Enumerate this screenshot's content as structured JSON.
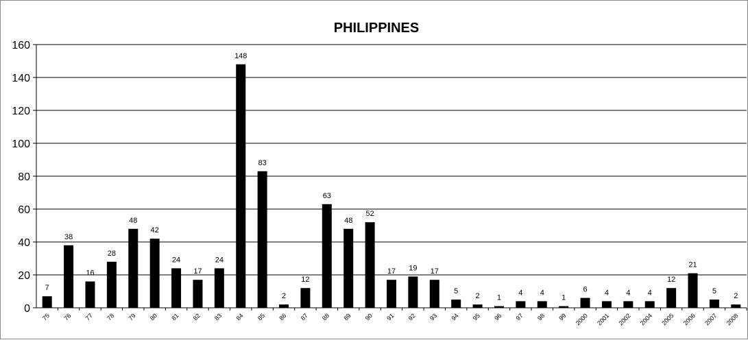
{
  "chart_data": {
    "type": "bar",
    "title": "PHILIPPINES",
    "xlabel": "",
    "ylabel": "",
    "ylim": [
      0,
      160
    ],
    "yticks": [
      0,
      20,
      40,
      60,
      80,
      100,
      120,
      140,
      160
    ],
    "grid": "horizontal",
    "legend": "none",
    "bar_color": "#000000",
    "categories": [
      "75",
      "76",
      "77",
      "78",
      "79",
      "80",
      "81",
      "82",
      "83",
      "84",
      "85",
      "86",
      "87",
      "88",
      "89",
      "90",
      "91",
      "92",
      "93",
      "94",
      "95",
      "96",
      "97",
      "98",
      "99",
      "2000",
      "2001",
      "2002",
      "2004",
      "2005",
      "2006",
      "2007",
      "2008"
    ],
    "values": [
      7,
      38,
      16,
      28,
      48,
      42,
      24,
      17,
      24,
      148,
      83,
      2,
      12,
      63,
      48,
      52,
      17,
      19,
      17,
      5,
      2,
      1,
      4,
      4,
      1,
      6,
      4,
      4,
      4,
      12,
      21,
      5,
      2
    ]
  }
}
